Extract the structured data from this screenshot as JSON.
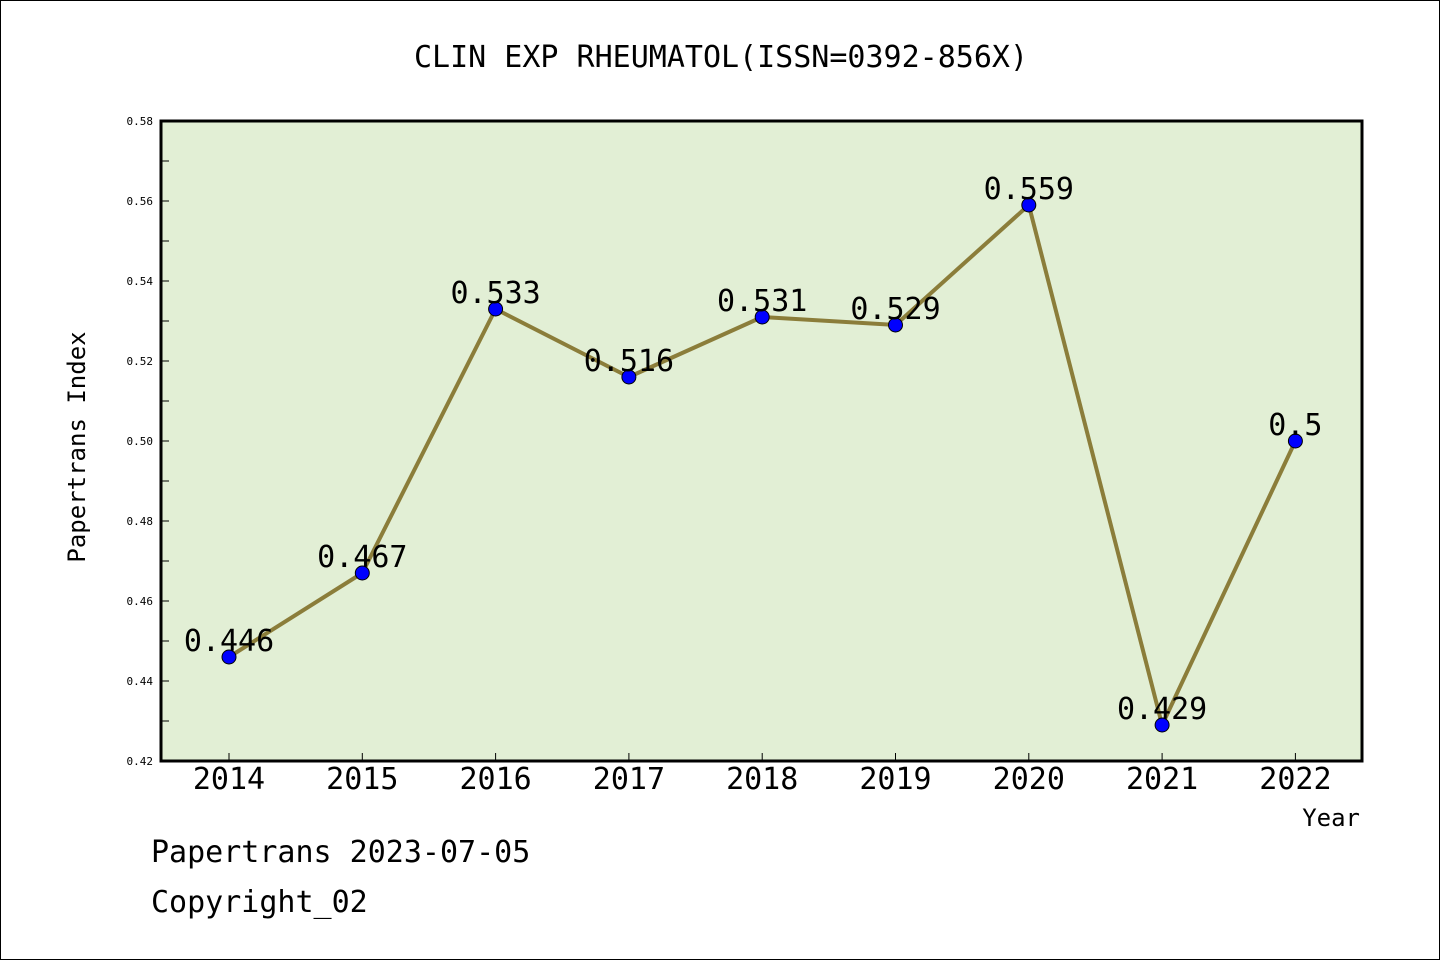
{
  "chart_data": {
    "type": "line",
    "title": "CLIN EXP RHEUMATOL(ISSN=0392-856X)",
    "xlabel": "Year",
    "ylabel": "Papertrans Index",
    "categories": [
      "2014",
      "2015",
      "2016",
      "2017",
      "2018",
      "2019",
      "2020",
      "2021",
      "2022"
    ],
    "values": [
      0.446,
      0.467,
      0.533,
      0.516,
      0.531,
      0.529,
      0.559,
      0.429,
      0.5
    ],
    "data_labels": [
      "0.446",
      "0.467",
      "0.533",
      "0.516",
      "0.531",
      "0.529",
      "0.559",
      "0.429",
      "0.5"
    ],
    "ylim": [
      0.42,
      0.58
    ],
    "yticks": [
      "0.42",
      "0.44",
      "0.46",
      "0.48",
      "0.50",
      "0.52",
      "0.54",
      "0.56",
      "0.58"
    ],
    "grid": false,
    "colors": {
      "plot_background": "#e2efd5",
      "line": "#8b7d3a",
      "marker": "#0000ff"
    }
  },
  "footer": {
    "source": "Papertrans 2023-07-05",
    "copyright": "Copyright_02"
  }
}
